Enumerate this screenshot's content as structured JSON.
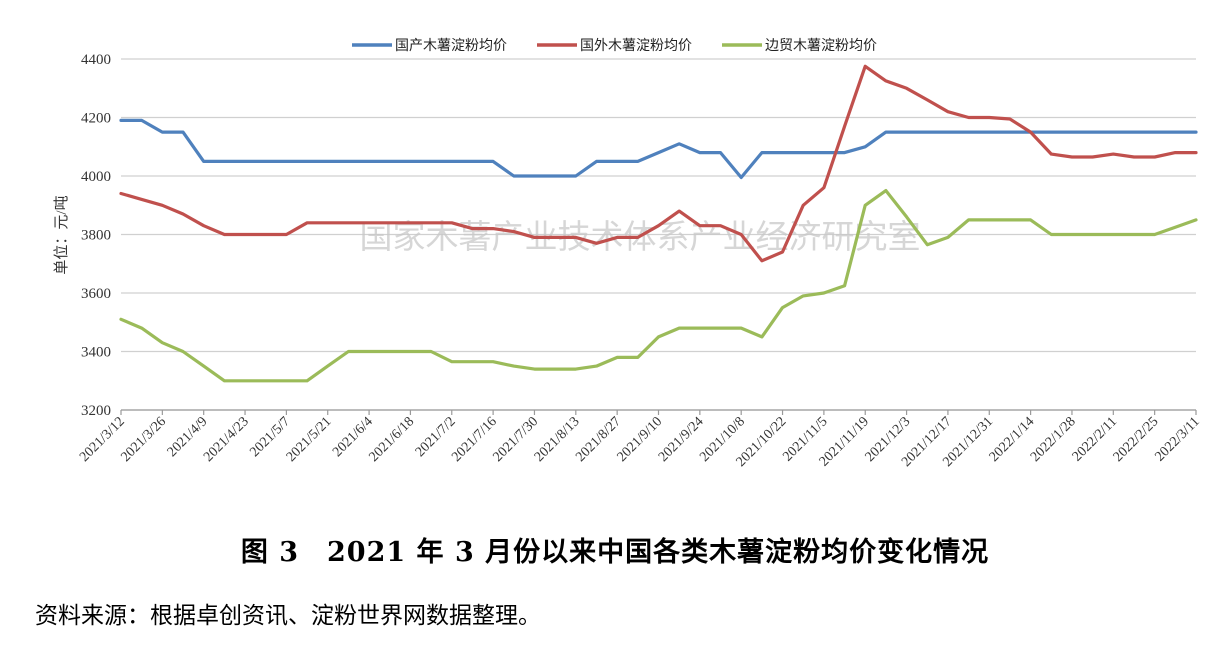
{
  "chart_data": {
    "type": "line",
    "ylabel": "单位：元/吨",
    "ylim": [
      3200,
      4400
    ],
    "yticks": [
      3200,
      3400,
      3600,
      3800,
      4000,
      4200,
      4400
    ],
    "grid": true,
    "legend_position": "top",
    "xtick_labels": [
      "2021/3/12",
      "2021/3/26",
      "2021/4/9",
      "2021/4/23",
      "2021/5/7",
      "2021/5/21",
      "2021/6/4",
      "2021/6/18",
      "2021/7/2",
      "2021/7/16",
      "2021/7/30",
      "2021/8/13",
      "2021/8/27",
      "2021/9/10",
      "2021/9/24",
      "2021/10/8",
      "2021/10/22",
      "2021/11/5",
      "2021/11/19",
      "2021/12/3",
      "2021/12/17",
      "2021/12/31",
      "2022/1/14",
      "2022/1/28",
      "2022/2/11",
      "2022/2/25",
      "2022/3/11"
    ],
    "x": [
      "2021/3/12",
      "2021/3/19",
      "2021/3/26",
      "2021/4/2",
      "2021/4/9",
      "2021/4/16",
      "2021/4/23",
      "2021/4/30",
      "2021/5/7",
      "2021/5/14",
      "2021/5/21",
      "2021/5/28",
      "2021/6/4",
      "2021/6/11",
      "2021/6/18",
      "2021/6/25",
      "2021/7/2",
      "2021/7/9",
      "2021/7/16",
      "2021/7/23",
      "2021/7/30",
      "2021/8/6",
      "2021/8/13",
      "2021/8/20",
      "2021/8/27",
      "2021/9/3",
      "2021/9/10",
      "2021/9/17",
      "2021/9/24",
      "2021/10/1",
      "2021/10/8",
      "2021/10/15",
      "2021/10/22",
      "2021/10/29",
      "2021/11/5",
      "2021/11/12",
      "2021/11/19",
      "2021/11/26",
      "2021/12/3",
      "2021/12/10",
      "2021/12/17",
      "2021/12/24",
      "2021/12/31",
      "2022/1/7",
      "2022/1/14",
      "2022/1/21",
      "2022/1/28",
      "2022/2/4",
      "2022/2/11",
      "2022/2/18",
      "2022/2/25",
      "2022/3/4",
      "2022/3/11"
    ],
    "series": [
      {
        "name": "国产木薯淀粉均价",
        "color": "#4F81BD",
        "values": [
          4190,
          4190,
          4150,
          4150,
          4050,
          4050,
          4050,
          4050,
          4050,
          4050,
          4050,
          4050,
          4050,
          4050,
          4050,
          4050,
          4050,
          4050,
          4050,
          4000,
          4000,
          4000,
          4000,
          4050,
          4050,
          4050,
          4080,
          4110,
          4080,
          4080,
          3995,
          4080,
          4080,
          4080,
          4080,
          4080,
          4100,
          4150,
          4150,
          4150,
          4150,
          4150,
          4150,
          4150,
          4150,
          4150,
          4150,
          4150,
          4150,
          4150,
          4150,
          4150,
          4150
        ]
      },
      {
        "name": "国外木薯淀粉均价",
        "color": "#C0504D",
        "values": [
          3940,
          3920,
          3900,
          3870,
          3830,
          3800,
          3800,
          3800,
          3800,
          3840,
          3840,
          3840,
          3840,
          3840,
          3840,
          3840,
          3840,
          3820,
          3820,
          3810,
          3790,
          3790,
          3790,
          3770,
          3790,
          3790,
          3830,
          3880,
          3830,
          3830,
          3800,
          3710,
          3740,
          3900,
          3960,
          4170,
          4375,
          4325,
          4300,
          4260,
          4220,
          4200,
          4200,
          4195,
          4150,
          4075,
          4065,
          4065,
          4075,
          4065,
          4065,
          4080,
          4080
        ]
      },
      {
        "name": "边贸木薯淀粉均价",
        "color": "#9BBB59",
        "values": [
          3510,
          3480,
          3430,
          3400,
          3350,
          3300,
          3300,
          3300,
          3300,
          3300,
          3350,
          3400,
          3400,
          3400,
          3400,
          3400,
          3365,
          3365,
          3365,
          3350,
          3340,
          3340,
          3340,
          3350,
          3380,
          3380,
          3450,
          3480,
          3480,
          3480,
          3480,
          3450,
          3550,
          3590,
          3600,
          3625,
          3900,
          3950,
          3860,
          3765,
          3790,
          3850,
          3850,
          3850,
          3850,
          3800,
          3800,
          3800,
          3800,
          3800,
          3800,
          3825,
          3850
        ]
      }
    ]
  },
  "watermark": "国家木薯产业技术体系产业经济研究室",
  "caption": "图 3　2021 年 3 月份以来中国各类木薯淀粉均价变化情况",
  "source": "资料来源：根据卓创资讯、淀粉世界网数据整理。"
}
